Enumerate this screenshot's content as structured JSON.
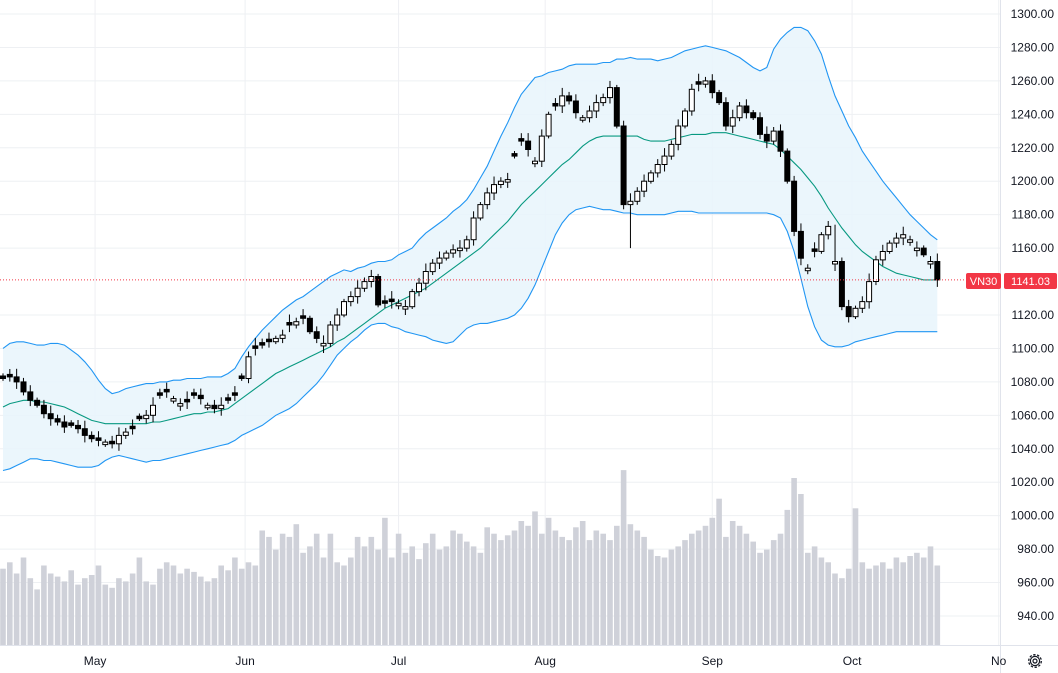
{
  "chart_data": {
    "type": "candlestick",
    "symbol": "VN30",
    "last_price": "1141.03",
    "ylim": [
      925,
      1305
    ],
    "y_ticks": [
      {
        "value": 1300,
        "label": "1300.00"
      },
      {
        "value": 1280,
        "label": "1280.00"
      },
      {
        "value": 1260,
        "label": "1260.00"
      },
      {
        "value": 1240,
        "label": "1240.00"
      },
      {
        "value": 1220,
        "label": "1220.00"
      },
      {
        "value": 1200,
        "label": "1200.00"
      },
      {
        "value": 1180,
        "label": "1180.00"
      },
      {
        "value": 1160,
        "label": "1160.00"
      },
      {
        "value": 1120,
        "label": "1120.00"
      },
      {
        "value": 1100,
        "label": "1100.00"
      },
      {
        "value": 1080,
        "label": "1080.00"
      },
      {
        "value": 1060,
        "label": "1060.00"
      },
      {
        "value": 1040,
        "label": "1040.00"
      },
      {
        "value": 1020,
        "label": "1020.00"
      },
      {
        "value": 1000,
        "label": "1000.00"
      },
      {
        "value": 980,
        "label": "980.00"
      },
      {
        "value": 960,
        "label": "960.00"
      },
      {
        "value": 940,
        "label": "940.00"
      }
    ],
    "x_ticks": [
      {
        "index": 13.5,
        "label": "May"
      },
      {
        "index": 35.5,
        "label": "Jun"
      },
      {
        "index": 58,
        "label": "Jul"
      },
      {
        "index": 79.5,
        "label": "Aug"
      },
      {
        "index": 104,
        "label": "Sep"
      },
      {
        "index": 124.5,
        "label": "Oct"
      },
      {
        "index": 146,
        "label": "No"
      }
    ],
    "visible_bars": 138,
    "close": [
      1082,
      1083,
      1080,
      1074,
      1069,
      1066,
      1061,
      1058,
      1056,
      1053,
      1054,
      1052,
      1048,
      1046,
      1045,
      1044,
      1043,
      1048,
      1050,
      1052,
      1058,
      1060,
      1066,
      1072,
      1074,
      1070,
      1067,
      1068,
      1072,
      1070,
      1066,
      1064,
      1066,
      1069,
      1072,
      1082,
      1095,
      1100,
      1102,
      1104,
      1106,
      1108,
      1114,
      1116,
      1118,
      1110,
      1106,
      1103,
      1114,
      1120,
      1128,
      1131,
      1136,
      1140,
      1143,
      1126,
      1127,
      1128,
      1127,
      1125,
      1134,
      1139,
      1146,
      1151,
      1154,
      1157,
      1159,
      1160,
      1165,
      1178,
      1186,
      1193,
      1198,
      1200,
      1201,
      1215,
      1224,
      1219,
      1212,
      1227,
      1240,
      1245,
      1251,
      1248,
      1241,
      1238,
      1242,
      1247,
      1250,
      1256,
      1233,
      1186,
      1188,
      1194,
      1200,
      1205,
      1210,
      1215,
      1222,
      1233,
      1242,
      1255,
      1258,
      1260,
      1253,
      1247,
      1233,
      1238,
      1245,
      1241,
      1238,
      1228,
      1224,
      1230,
      1218,
      1200,
      1170,
      1154,
      1148,
      1158,
      1168,
      1173,
      1152,
      1125,
      1119,
      1124,
      1128,
      1140,
      1153,
      1158,
      1163,
      1166,
      1168,
      1165,
      1160,
      1156,
      1152,
      1141
    ],
    "up_days": [
      15,
      17,
      18,
      21,
      22,
      25,
      26,
      30,
      32,
      36,
      40,
      41,
      43,
      47,
      48,
      49,
      50,
      51,
      52,
      53,
      54,
      58,
      59,
      60,
      61,
      62,
      63,
      64,
      65,
      66,
      67,
      68,
      69,
      70,
      71,
      72,
      73,
      74,
      78,
      79,
      80,
      82,
      85,
      86,
      87,
      88,
      89,
      92,
      93,
      94,
      95,
      96,
      97,
      98,
      99,
      100,
      101,
      103,
      107,
      108,
      113,
      118,
      120,
      121,
      122,
      125,
      126,
      127,
      128,
      129,
      130,
      131,
      132,
      133,
      134,
      136
    ],
    "bollinger": {
      "upper": [
        1100,
        1103,
        1104,
        1104,
        1103,
        1102,
        1102,
        1103,
        1103,
        1102,
        1099,
        1096,
        1092,
        1087,
        1081,
        1076,
        1073,
        1074,
        1076,
        1077,
        1078,
        1079,
        1079,
        1080,
        1080,
        1081,
        1081,
        1082,
        1082,
        1082,
        1083,
        1083,
        1083,
        1085,
        1088,
        1095,
        1101,
        1106,
        1111,
        1115,
        1119,
        1123,
        1126,
        1129,
        1131,
        1134,
        1137,
        1140,
        1143,
        1145,
        1147,
        1146,
        1148,
        1149,
        1151,
        1152,
        1152,
        1153,
        1156,
        1158,
        1160,
        1165,
        1169,
        1172,
        1175,
        1178,
        1182,
        1185,
        1189,
        1195,
        1202,
        1209,
        1218,
        1227,
        1235,
        1244,
        1252,
        1257,
        1262,
        1263,
        1265,
        1266,
        1267,
        1269,
        1270,
        1270,
        1270,
        1270,
        1271,
        1271,
        1273,
        1273,
        1274,
        1273,
        1273,
        1273,
        1272,
        1273,
        1274,
        1276,
        1278,
        1279,
        1280,
        1281,
        1280,
        1279,
        1278,
        1276,
        1274,
        1271,
        1268,
        1266,
        1268,
        1279,
        1285,
        1289,
        1292,
        1292,
        1290,
        1284,
        1276,
        1263,
        1251,
        1242,
        1233,
        1226,
        1218,
        1212,
        1206,
        1200,
        1195,
        1190,
        1185,
        1180,
        1176,
        1172,
        1168,
        1165
      ],
      "middle": [
        1065,
        1067,
        1068,
        1069,
        1069,
        1068,
        1068,
        1067,
        1066,
        1065,
        1063,
        1061,
        1059,
        1057,
        1056,
        1055,
        1055,
        1055,
        1055,
        1055,
        1055,
        1055,
        1056,
        1056,
        1057,
        1058,
        1059,
        1060,
        1061,
        1061,
        1062,
        1062,
        1063,
        1064,
        1067,
        1070,
        1073,
        1076,
        1079,
        1082,
        1085,
        1087,
        1089,
        1091,
        1093,
        1095,
        1097,
        1099,
        1101,
        1104,
        1106,
        1109,
        1112,
        1115,
        1118,
        1121,
        1124,
        1126,
        1128,
        1130,
        1132,
        1134,
        1136,
        1139,
        1142,
        1145,
        1148,
        1151,
        1154,
        1157,
        1160,
        1164,
        1168,
        1172,
        1176,
        1181,
        1186,
        1190,
        1194,
        1198,
        1202,
        1206,
        1210,
        1213,
        1217,
        1221,
        1224,
        1226,
        1227,
        1227,
        1227,
        1227,
        1227,
        1227,
        1225,
        1224,
        1224,
        1224,
        1225,
        1226,
        1227,
        1228,
        1228,
        1228,
        1229,
        1229,
        1229,
        1228,
        1227,
        1226,
        1225,
        1224,
        1223,
        1222,
        1219,
        1215,
        1211,
        1207,
        1202,
        1197,
        1191,
        1184,
        1178,
        1172,
        1167,
        1162,
        1158,
        1155,
        1152,
        1149,
        1147,
        1145,
        1144,
        1143,
        1142,
        1141,
        1141,
        1141
      ],
      "lower": [
        1027,
        1028,
        1030,
        1032,
        1034,
        1034,
        1033,
        1033,
        1032,
        1031,
        1030,
        1029,
        1029,
        1029,
        1030,
        1033,
        1035,
        1036,
        1035,
        1034,
        1033,
        1032,
        1033,
        1033,
        1034,
        1035,
        1036,
        1037,
        1038,
        1039,
        1040,
        1041,
        1042,
        1043,
        1045,
        1048,
        1050,
        1052,
        1054,
        1057,
        1060,
        1062,
        1064,
        1067,
        1071,
        1075,
        1079,
        1084,
        1090,
        1096,
        1100,
        1104,
        1107,
        1111,
        1114,
        1115,
        1115,
        1113,
        1112,
        1110,
        1109,
        1108,
        1107,
        1105,
        1104,
        1103,
        1104,
        1108,
        1112,
        1114,
        1115,
        1115,
        1116,
        1117,
        1118,
        1120,
        1124,
        1130,
        1138,
        1148,
        1158,
        1168,
        1175,
        1180,
        1183,
        1184,
        1185,
        1184,
        1183,
        1183,
        1182,
        1181,
        1181,
        1180,
        1180,
        1180,
        1180,
        1180,
        1181,
        1182,
        1182,
        1182,
        1181,
        1181,
        1181,
        1181,
        1181,
        1181,
        1181,
        1181,
        1181,
        1181,
        1181,
        1180,
        1178,
        1170,
        1158,
        1142,
        1125,
        1113,
        1105,
        1102,
        1101,
        1101,
        1102,
        1104,
        1105,
        1106,
        1107,
        1108,
        1109,
        1110,
        1110,
        1110,
        1110,
        1110,
        1110,
        1110
      ]
    },
    "volume": [
      0.48,
      0.52,
      0.45,
      0.55,
      0.42,
      0.35,
      0.5,
      0.45,
      0.43,
      0.4,
      0.47,
      0.38,
      0.42,
      0.44,
      0.5,
      0.38,
      0.36,
      0.42,
      0.4,
      0.45,
      0.55,
      0.4,
      0.38,
      0.48,
      0.52,
      0.5,
      0.45,
      0.48,
      0.46,
      0.43,
      0.4,
      0.42,
      0.5,
      0.47,
      0.55,
      0.48,
      0.52,
      0.5,
      0.72,
      0.68,
      0.6,
      0.7,
      0.68,
      0.76,
      0.58,
      0.62,
      0.7,
      0.55,
      0.7,
      0.52,
      0.5,
      0.55,
      0.68,
      0.62,
      0.68,
      0.6,
      0.8,
      0.55,
      0.7,
      0.58,
      0.62,
      0.54,
      0.64,
      0.7,
      0.6,
      0.62,
      0.72,
      0.7,
      0.65,
      0.62,
      0.58,
      0.74,
      0.7,
      0.66,
      0.69,
      0.72,
      0.78,
      0.75,
      0.84,
      0.7,
      0.8,
      0.72,
      0.68,
      0.66,
      0.74,
      0.78,
      0.66,
      0.72,
      0.7,
      0.66,
      0.75,
      1.1,
      0.76,
      0.72,
      0.68,
      0.6,
      0.56,
      0.55,
      0.6,
      0.62,
      0.66,
      0.7,
      0.72,
      0.75,
      0.8,
      0.92,
      0.68,
      0.78,
      0.75,
      0.7,
      0.65,
      0.58,
      0.6,
      0.66,
      0.7,
      0.85,
      1.05,
      0.95,
      0.58,
      0.62,
      0.55,
      0.52,
      0.45,
      0.42,
      0.48,
      0.86,
      0.52,
      0.48,
      0.5,
      0.52,
      0.48,
      0.55,
      0.52,
      0.56,
      0.58,
      0.55,
      0.62,
      0.5
    ]
  },
  "colors": {
    "band_line": "#2196f3",
    "band_fill": "#e8f4fc",
    "middle_line": "#089981",
    "candle": "#000000",
    "volume": "#cfd1d9",
    "price_tag": "#f23645",
    "grid": "#eef0f3",
    "axis_text": "#131722"
  },
  "icons": {
    "settings": "settings-gear-icon"
  }
}
